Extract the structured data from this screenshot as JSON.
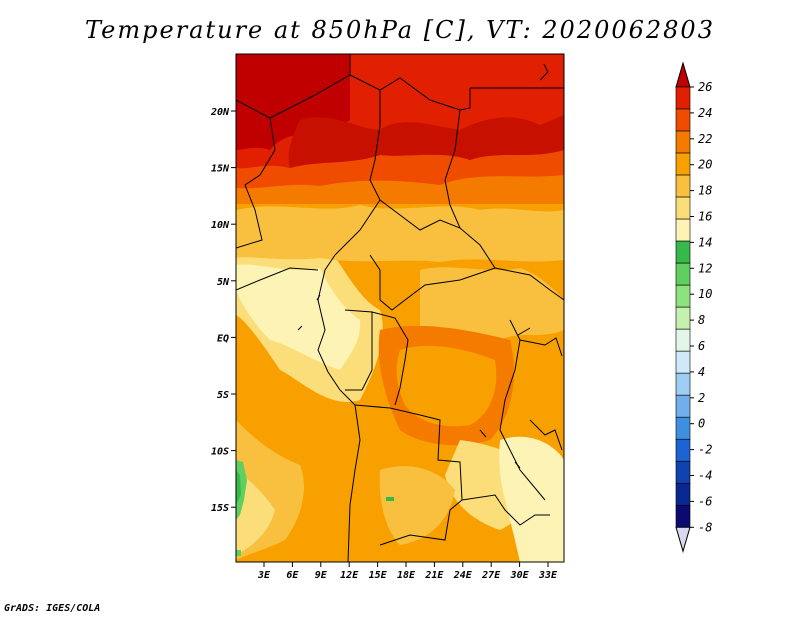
{
  "title": "Temperature at 850hPa [C], VT: 2020062803",
  "footer": "GrADS: IGES/COLA",
  "map": {
    "lon_range": [
      0,
      36
    ],
    "lat_range": [
      -20,
      24
    ],
    "x_ticks": [
      "3E",
      "6E",
      "9E",
      "12E",
      "15E",
      "18E",
      "21E",
      "24E",
      "27E",
      "30E",
      "33E"
    ],
    "y_ticks": [
      "20N",
      "15N",
      "10N",
      "5N",
      "EQ",
      "5S",
      "10S",
      "15S"
    ]
  },
  "colorbar": {
    "labels": [
      "26",
      "24",
      "22",
      "20",
      "18",
      "16",
      "14",
      "12",
      "10",
      "8",
      "6",
      "4",
      "2",
      "0",
      "-2",
      "-4",
      "-6",
      "-8"
    ],
    "colors": [
      "#c00000",
      "#e02000",
      "#f04c00",
      "#f57a00",
      "#f8a000",
      "#f9c040",
      "#fbde7a",
      "#fcf3b4",
      "#37b84a",
      "#5fd060",
      "#8ee27c",
      "#c5f0b0",
      "#e4f6ea",
      "#cfe9f8",
      "#9fcdf2",
      "#6fb0ec",
      "#3f8fe0",
      "#1c64d4",
      "#1042b0",
      "#082890",
      "#0a0a70",
      "#d8d8f0"
    ]
  }
}
